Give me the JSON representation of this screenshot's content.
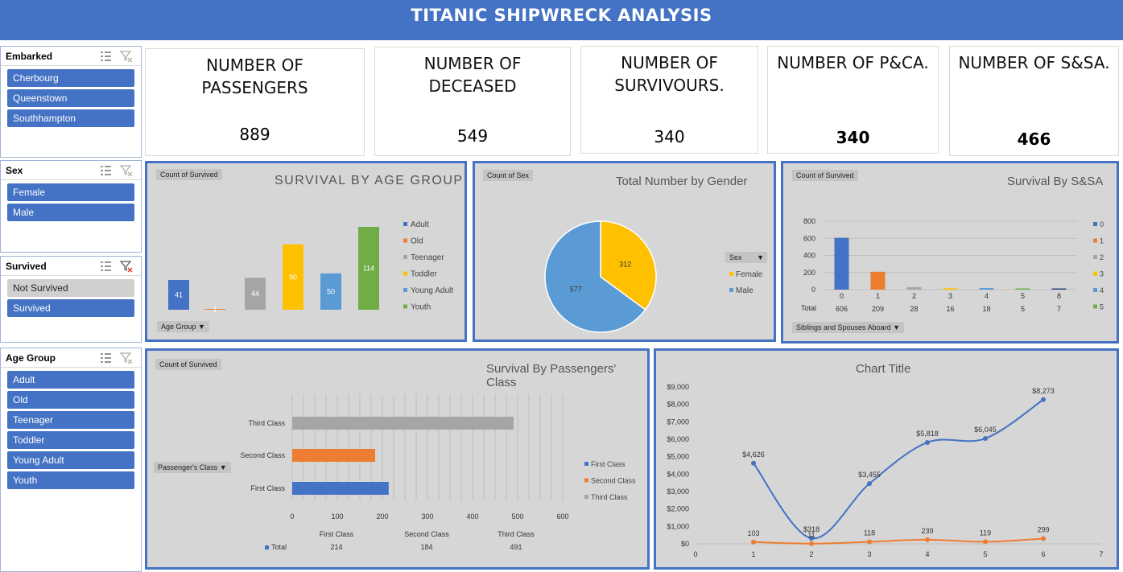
{
  "header": {
    "title": "TITANIC SHIPWRECK ANALYSIS"
  },
  "slicers": {
    "embarked": {
      "title": "Embarked",
      "items": [
        "Cherbourg",
        "Queenstown",
        "Southhampton"
      ]
    },
    "sex": {
      "title": "Sex",
      "items": [
        "Female",
        "Male"
      ]
    },
    "survived": {
      "title": "Survived",
      "items": [
        "Not Survived",
        "Survived"
      ]
    },
    "age_group": {
      "title": "Age Group",
      "items": [
        "Adult",
        "Old",
        "Teenager",
        "Toddler",
        "Young Adult",
        "Youth"
      ]
    }
  },
  "kpis": [
    {
      "label1": "NUMBER OF",
      "label2": "PASSENGERS",
      "value": "889"
    },
    {
      "label1": "NUMBER OF",
      "label2": "DECEASED",
      "value": "549"
    },
    {
      "label1": "NUMBER OF",
      "label2": "SURVIVOURS.",
      "value": "340"
    },
    {
      "label1": "NUMBER OF P&CA.",
      "label2": "",
      "value": "340"
    },
    {
      "label1": "NUMBER OF S&SA.",
      "label2": "",
      "value": "466"
    }
  ],
  "panels": {
    "age": {
      "tag": "Count of Survived",
      "title": "SURVIVAL BY AGE GROUP",
      "filter": "Age Group"
    },
    "gender": {
      "tag": "Count of Sex",
      "title": "Total Number by Gender",
      "filter": "Sex"
    },
    "ssa": {
      "tag": "Count of Survived",
      "title": "Survival By S&SA",
      "filter": "Siblings and Spouses Aboard",
      "total_label": "Total"
    },
    "pclass": {
      "tag": "Count of Survived",
      "title": "Survival By Passengers' Class",
      "filter": "Passenger's Class",
      "total_label": "Total"
    },
    "line": {
      "title": "Chart Title"
    }
  },
  "colors": {
    "blue": "#4472c4",
    "orange": "#ed7d31",
    "gray": "#a5a5a5",
    "gold": "#ffc000",
    "lightblue": "#5b9bd5",
    "green": "#70ad47"
  },
  "chart_data": [
    {
      "type": "bar",
      "title": "SURVIVAL BY AGE GROUP",
      "categories": [
        "Adult",
        "Old",
        "Teenager",
        "Toddler",
        "Young Adult",
        "Youth"
      ],
      "values": [
        41,
        1,
        44,
        90,
        50,
        114
      ],
      "legend": "right"
    },
    {
      "type": "pie",
      "title": "Total Number by Gender",
      "categories": [
        "Female",
        "Male"
      ],
      "values": [
        312,
        577
      ],
      "legend": "right"
    },
    {
      "type": "bar",
      "title": "Survival By S&SA",
      "categories": [
        "0",
        "1",
        "2",
        "3",
        "4",
        "5",
        "8"
      ],
      "values": [
        606,
        209,
        28,
        16,
        18,
        5,
        7
      ],
      "legend_entries": [
        "0",
        "1",
        "2",
        "3",
        "4",
        "5"
      ],
      "yticks": [
        0,
        200,
        400,
        600,
        800
      ],
      "ylim": [
        0,
        800
      ]
    },
    {
      "type": "bar",
      "title": "Survival By Passengers' Class",
      "categories": [
        "First Class",
        "Second Class",
        "Third Class"
      ],
      "values": [
        214,
        184,
        491
      ],
      "xticks": [
        0,
        100,
        200,
        300,
        400,
        500,
        600
      ],
      "xlim": [
        0,
        600
      ]
    },
    {
      "type": "line",
      "title": "Chart Title",
      "x": [
        1,
        2,
        3,
        4,
        5,
        6
      ],
      "series": [
        {
          "values": [
            4626,
            318,
            3455,
            5818,
            6045,
            8273
          ],
          "labels": [
            "$4,626",
            "$318",
            "$3,455",
            "$5,818",
            "$6,045",
            "$8,273"
          ]
        },
        {
          "values": [
            103,
            11,
            118,
            239,
            119,
            299
          ],
          "labels": [
            "103",
            "11",
            "118",
            "239",
            "119",
            "299"
          ]
        }
      ],
      "xticks": [
        0,
        1,
        2,
        3,
        4,
        5,
        6,
        7
      ],
      "yticks": [
        "$0",
        "$1,000",
        "$2,000",
        "$3,000",
        "$4,000",
        "$5,000",
        "$6,000",
        "$7,000",
        "$8,000",
        "$9,000"
      ],
      "ylim": [
        0,
        9000
      ],
      "xlim": [
        0,
        7
      ]
    }
  ]
}
